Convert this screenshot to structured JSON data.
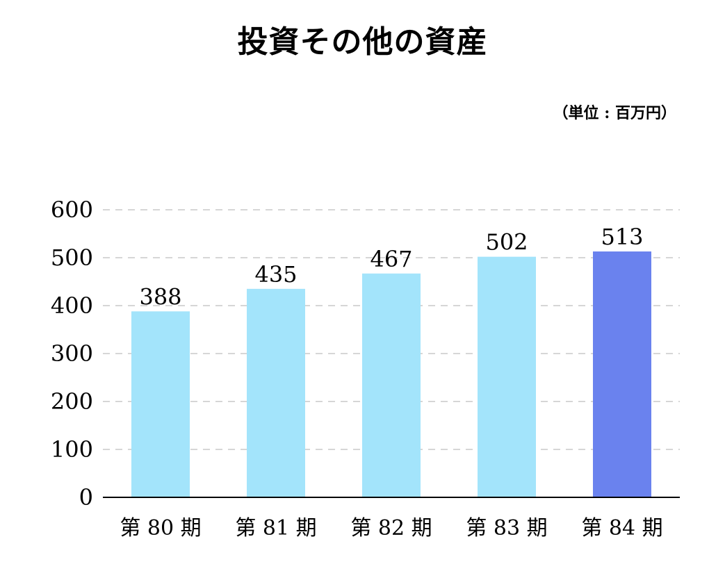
{
  "chart_data": {
    "type": "bar",
    "title": "投資その他の資産",
    "unit": "（単位 : 百万円）",
    "categories": [
      "第 80 期",
      "第 81 期",
      "第 82 期",
      "第 83 期",
      "第 84 期"
    ],
    "values": [
      388,
      435,
      467,
      502,
      513
    ],
    "ylim": [
      0,
      600
    ],
    "yticks": [
      0,
      100,
      200,
      300,
      400,
      500,
      600
    ],
    "grid": true,
    "grid_style": "dashed",
    "bar_colors": [
      "#a3e4fb",
      "#a3e4fb",
      "#a3e4fb",
      "#a3e4fb",
      "#6a82ee"
    ],
    "axis_color": "#000000",
    "grid_color": "#c8c8c8"
  }
}
